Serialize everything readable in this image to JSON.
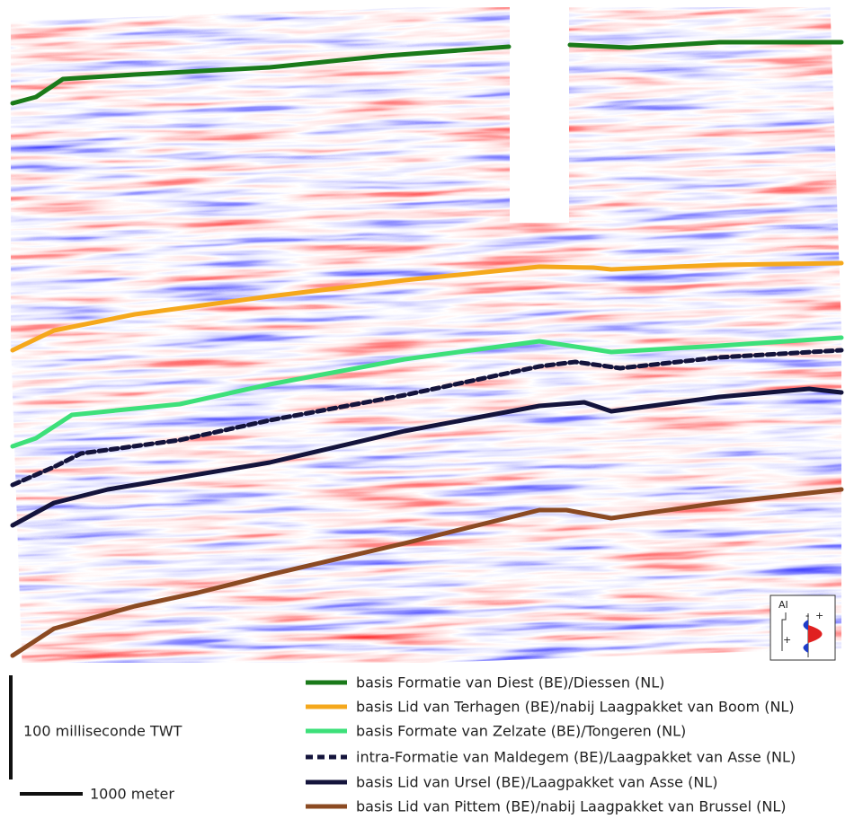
{
  "legend": [
    {
      "label": "basis Formatie van Diest (BE)/Diessen (NL)",
      "color": "#1a7a1a",
      "style": "solid"
    },
    {
      "label": "basis Lid van Terhagen (BE)/nabij Laagpakket van Boom (NL)",
      "color": "#f5a81c",
      "style": "solid"
    },
    {
      "label": "basis Formate van Zelzate (BE)/Tongeren (NL)",
      "color": "#3de07a",
      "style": "solid"
    },
    {
      "label": "intra-Formatie van Maldegem (BE)/Laagpakket van Asse (NL)",
      "color": "#14143c",
      "style": "dashed"
    },
    {
      "label": "basis Lid van Ursel (BE)/Laagpakket van Asse (NL)",
      "color": "#14143c",
      "style": "solid"
    },
    {
      "label": "basis Lid van Pittem (BE)/nabij Laagpakket van Brussel (NL)",
      "color": "#8b4a22",
      "style": "solid"
    }
  ],
  "scale": {
    "vertical": "100 milliseconde TWT",
    "horizontal": "1000 meter"
  },
  "icon": {
    "axis": "AI",
    "plus": "+",
    "minus": "-"
  }
}
